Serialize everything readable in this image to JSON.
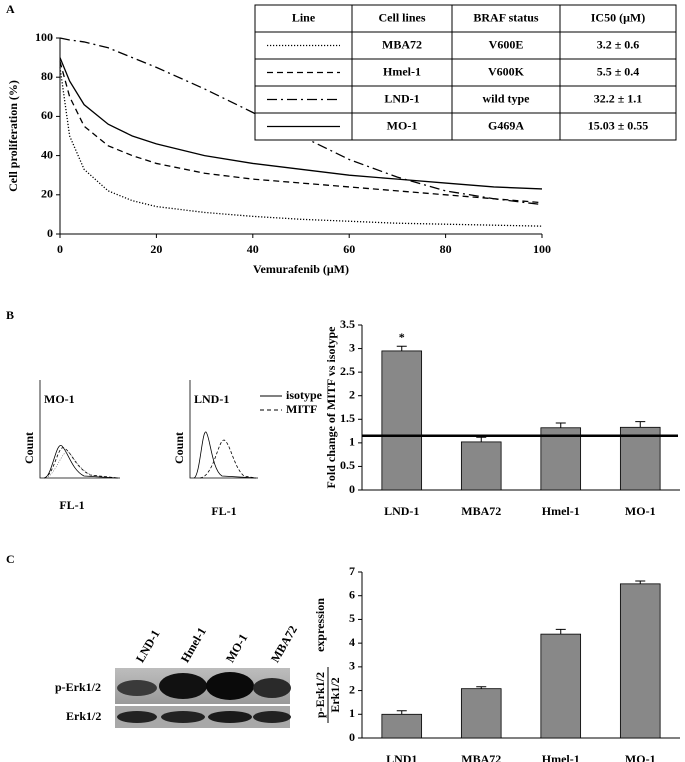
{
  "panel_labels": [
    "A",
    "B",
    "C"
  ],
  "chart_data": [
    {
      "type": "line",
      "ylabel": "Cell proliferation (%)",
      "xlabel": "Vemurafenib (μM)",
      "x": [
        0,
        2,
        5,
        10,
        15,
        20,
        30,
        40,
        50,
        60,
        70,
        80,
        90,
        100
      ],
      "xlim": [
        0,
        100
      ],
      "ylim": [
        0,
        100
      ],
      "xticks": [
        0,
        20,
        40,
        60,
        80,
        100
      ],
      "yticks": [
        0,
        20,
        40,
        60,
        80,
        100
      ],
      "series": [
        {
          "name": "MBA72",
          "color": "#000000",
          "dash": "dotted",
          "values": [
            85,
            50,
            33,
            22,
            17,
            14,
            11,
            9,
            7.5,
            6.5,
            5.5,
            5,
            4.5,
            4
          ]
        },
        {
          "name": "Hmel-1",
          "color": "#000000",
          "dash": "dashed",
          "values": [
            88,
            70,
            55,
            45,
            40,
            36,
            31,
            28,
            26,
            24,
            22,
            20,
            18,
            16
          ]
        },
        {
          "name": "LND-1",
          "color": "#000000",
          "dash": "dashdot",
          "values": [
            100,
            99,
            98,
            95,
            90,
            85,
            74,
            62,
            50,
            38,
            29,
            22,
            18,
            15
          ]
        },
        {
          "name": "MO-1",
          "color": "#000000",
          "dash": "solid",
          "values": [
            90,
            78,
            66,
            56,
            50,
            46,
            40,
            36,
            33,
            30,
            28,
            26,
            24,
            23
          ]
        }
      ],
      "table": {
        "header": [
          "Line",
          "Cell lines",
          "BRAF status",
          "IC50 (μM)"
        ],
        "rows": [
          [
            "V600E",
            "3.2 ± 0.6"
          ],
          [
            "V600K",
            "5.5 ± 0.4"
          ],
          [
            "wild type",
            "32.2 ± 1.1"
          ],
          [
            "G469A",
            "15.03 ± 0.55"
          ]
        ]
      }
    },
    {
      "type": "bar",
      "ylabel": "Fold change of MITF vs isotype",
      "categories": [
        "LND-1",
        "MBA72",
        "Hmel-1",
        "MO-1"
      ],
      "values": [
        2.95,
        1.02,
        1.32,
        1.33
      ],
      "errors": [
        0.1,
        0.1,
        0.1,
        0.12
      ],
      "color": "#888888",
      "annotation": "*",
      "reference_line": 1.15,
      "ylim": [
        0,
        3.5
      ],
      "yticks": [
        0,
        0.5,
        1,
        1.5,
        2,
        2.5,
        3,
        3.5
      ]
    },
    {
      "type": "bar",
      "ylabel": {
        "numerator": "p-Erk1/2",
        "denominator": "Erk1/2",
        "text": "expression"
      },
      "categories": [
        "LND1",
        "MBA72",
        "Hmel-1",
        "MO-1"
      ],
      "values": [
        1,
        2.08,
        4.38,
        6.5
      ],
      "errors": [
        0.15,
        0.08,
        0.2,
        0.12
      ],
      "color": "#888888",
      "ylim": [
        0,
        7
      ],
      "yticks": [
        0,
        1,
        2,
        3,
        4,
        5,
        6,
        7
      ]
    }
  ],
  "flow_plots": {
    "legend": [
      "isotype",
      "MITF"
    ],
    "plots": [
      {
        "title": "MO-1",
        "ylabel": "Count",
        "xlabel": "FL-1"
      },
      {
        "title": "LND-1",
        "ylabel": "Count",
        "xlabel": "FL-1"
      }
    ]
  },
  "blot": {
    "lanes": [
      "LND-1",
      "Hmel-1",
      "MO-1",
      "MBA72"
    ],
    "rows": [
      "p-Erk1/2",
      "Erk1/2"
    ]
  }
}
